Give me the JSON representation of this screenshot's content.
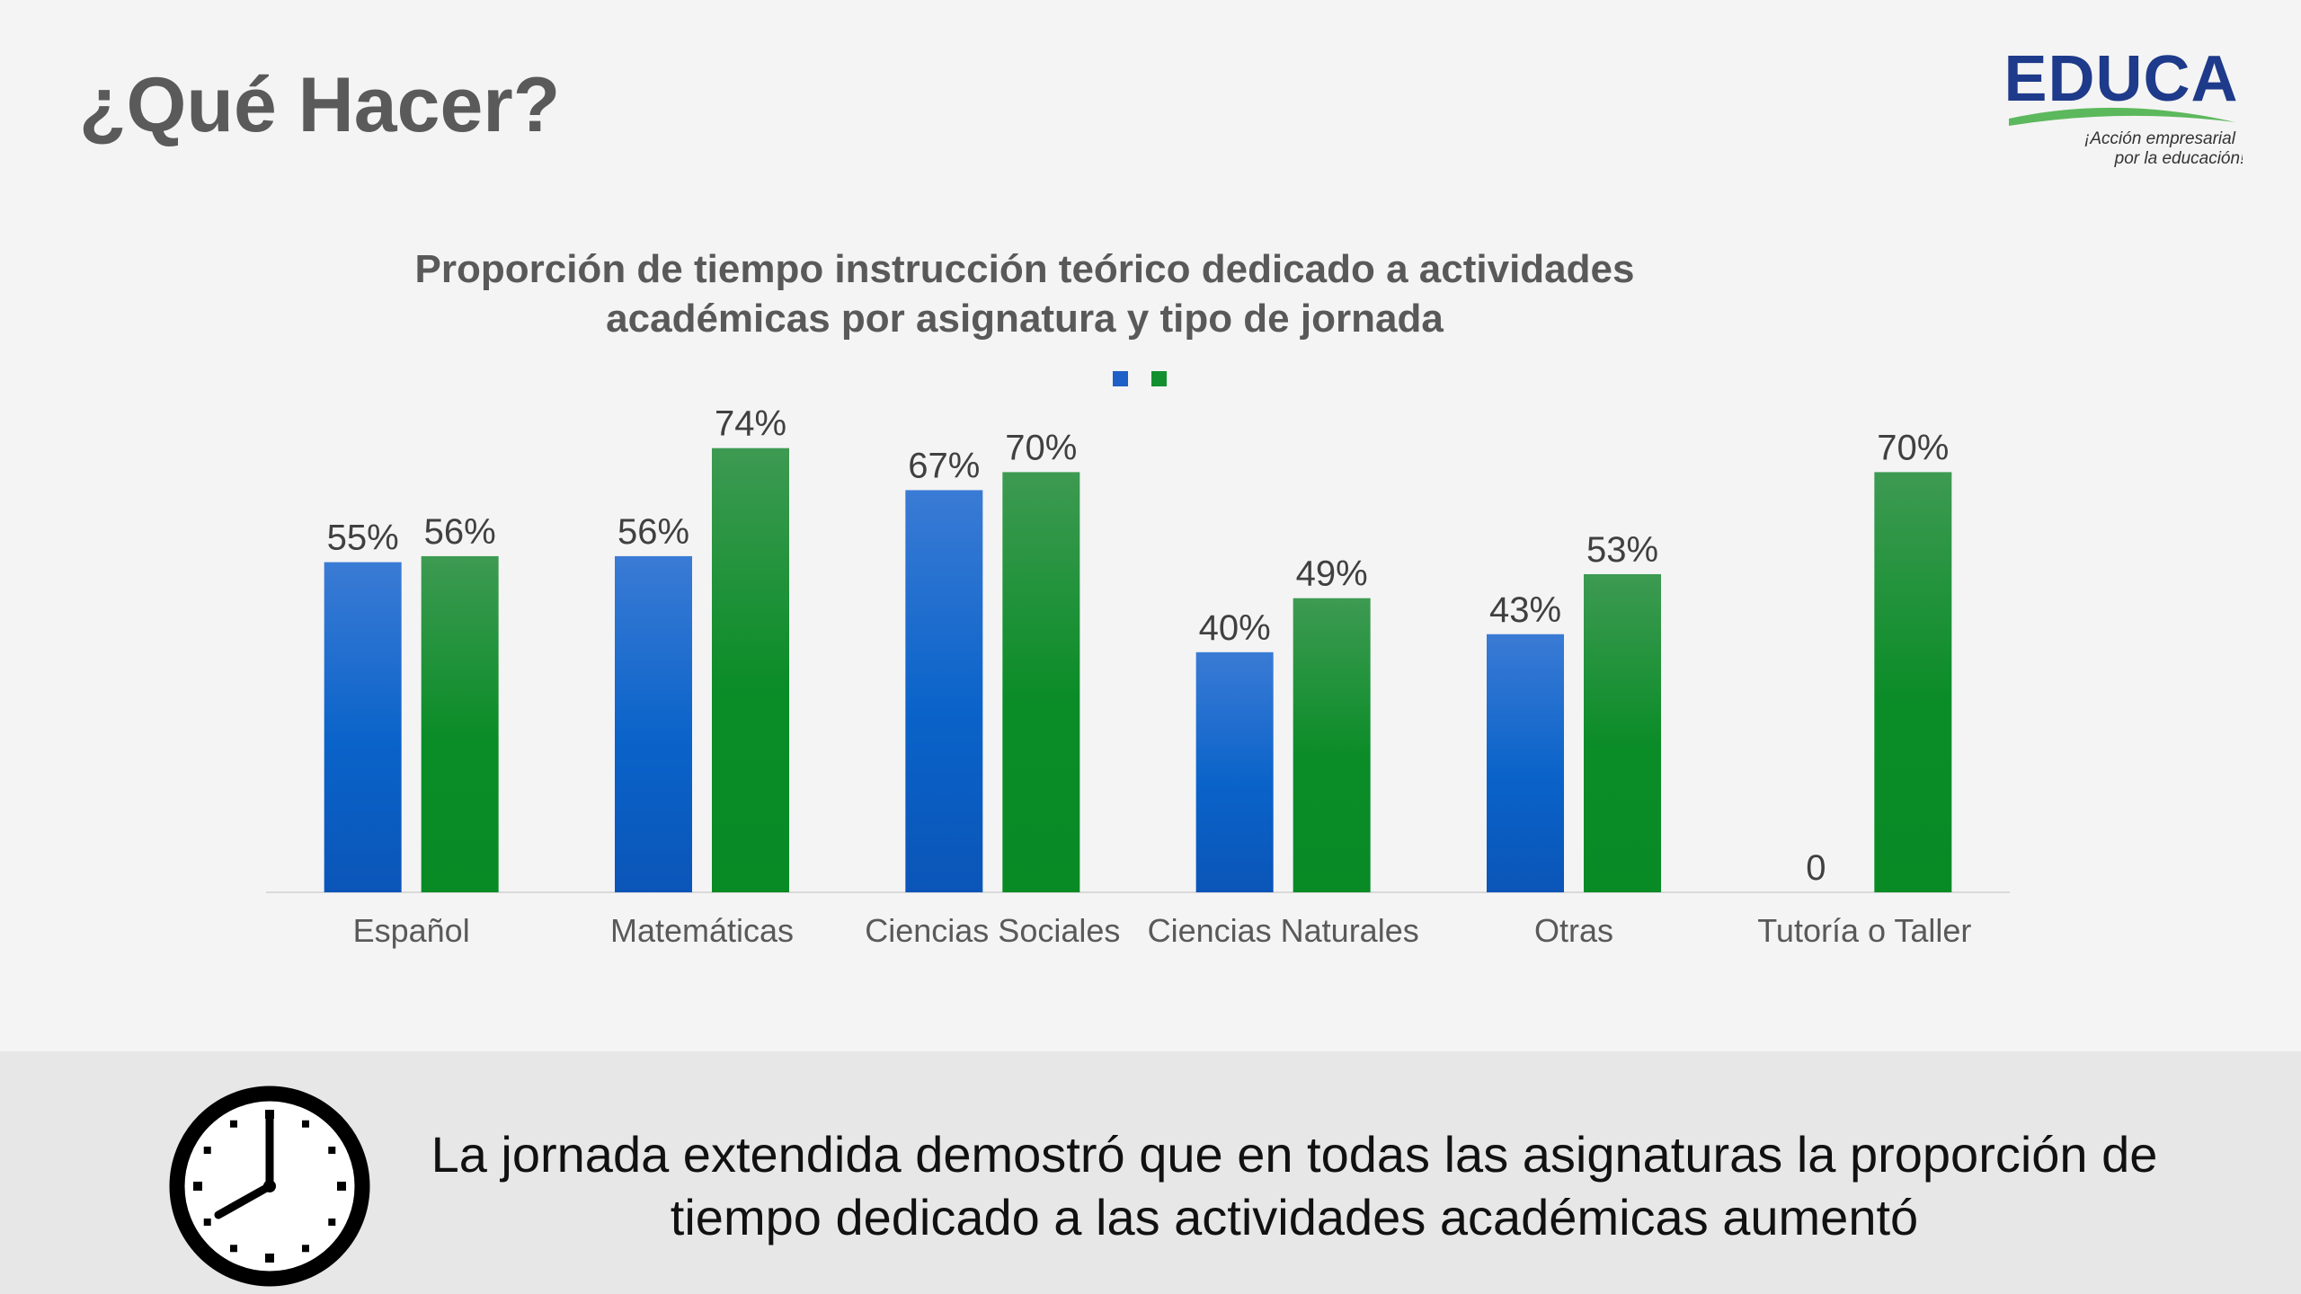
{
  "slide": {
    "title": "¿Qué Hacer?"
  },
  "logo": {
    "name": "EDUCA",
    "tagline_line1": "¡Acción empresarial",
    "tagline_line2": "por la educación!",
    "colors": {
      "text": "#1e3a8a",
      "swoosh": "#5cb85c"
    }
  },
  "chart_data": {
    "type": "bar",
    "title_line1": "Proporción de tiempo instrucción teórico dedicado a actividades",
    "title_line2": "académicas por asignatura y tipo de jornada",
    "categories": [
      "Español",
      "Matemáticas",
      "Ciencias Sociales",
      "Ciencias Naturales",
      "Otras",
      "Tutoría o Taller"
    ],
    "series": [
      {
        "color": "#1f5fc8",
        "values": [
          55,
          56,
          67,
          40,
          43,
          0
        ],
        "labels": [
          "55%",
          "56%",
          "67%",
          "40%",
          "43%",
          "0"
        ]
      },
      {
        "color": "#12902f",
        "values": [
          56,
          74,
          70,
          49,
          53,
          70
        ],
        "labels": [
          "56%",
          "74%",
          "70%",
          "49%",
          "53%",
          "70%"
        ]
      }
    ],
    "ylim": [
      0,
      100
    ],
    "grid": false,
    "legend": "top-center"
  },
  "footer": {
    "line1": "La jornada extendida demostró que en todas las asignaturas la proporción de",
    "line2": "tiempo dedicado a las actividades académicas aumentó",
    "icon": "clock-icon"
  }
}
